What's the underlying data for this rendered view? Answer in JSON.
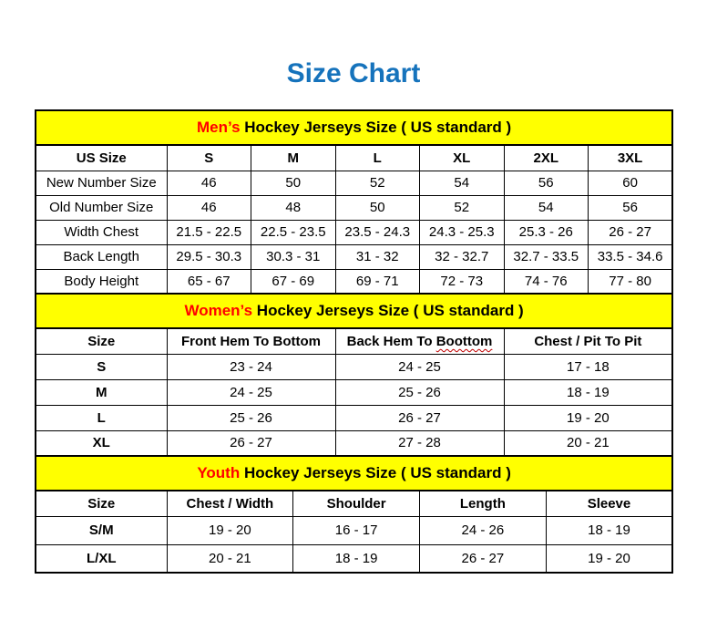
{
  "page": {
    "title": "Size Chart"
  },
  "colors": {
    "title_blue": "#1673BC",
    "band_yellow": "#FFFF00",
    "accent_red": "#FF0000",
    "border_black": "#000000"
  },
  "sections": [
    {
      "id": "mens",
      "heading": {
        "highlight": "Men’s",
        "rest": " Hockey Jerseys Size ( US standard )"
      },
      "columns": [
        "US Size",
        "S",
        "M",
        "L",
        "XL",
        "2XL",
        "3XL"
      ],
      "rows": [
        {
          "label": "New Number Size",
          "values": [
            "46",
            "50",
            "52",
            "54",
            "56",
            "60"
          ]
        },
        {
          "label": "Old Number Size",
          "values": [
            "46",
            "48",
            "50",
            "52",
            "54",
            "56"
          ]
        },
        {
          "label": "Width Chest",
          "values": [
            "21.5 - 22.5",
            "22.5 - 23.5",
            "23.5 - 24.3",
            "24.3 - 25.3",
            "25.3 - 26",
            "26 - 27"
          ]
        },
        {
          "label": "Back Length",
          "values": [
            "29.5 - 30.3",
            "30.3 - 31",
            "31 - 32",
            "32 - 32.7",
            "32.7 - 33.5",
            "33.5 - 34.6"
          ]
        },
        {
          "label": "Body Height",
          "values": [
            "65 - 67",
            "67 - 69",
            "69 - 71",
            "72 - 73",
            "74 - 76",
            "77 - 80"
          ]
        }
      ]
    },
    {
      "id": "womens",
      "heading": {
        "highlight": "Women’s",
        "rest": " Hockey Jerseys Size ( US standard )"
      },
      "columns": [
        "Size",
        "Front Hem To Bottom",
        "Back Hem To Boottom",
        "Chest / Pit To Pit"
      ],
      "misspelled_word": "Boottom",
      "rows": [
        {
          "label": "S",
          "values": [
            "23 - 24",
            "24 - 25",
            "17 - 18"
          ]
        },
        {
          "label": "M",
          "values": [
            "24 - 25",
            "25 - 26",
            "18 - 19"
          ]
        },
        {
          "label": "L",
          "values": [
            "25 - 26",
            "26 - 27",
            "19 - 20"
          ]
        },
        {
          "label": "XL",
          "values": [
            "26 - 27",
            "27 - 28",
            "20 - 21"
          ]
        }
      ]
    },
    {
      "id": "youth",
      "heading": {
        "highlight": "Youth",
        "rest": " Hockey Jerseys Size ( US standard )"
      },
      "columns": [
        "Size",
        "Chest / Width",
        "Shoulder",
        "Length",
        "Sleeve"
      ],
      "rows": [
        {
          "label": "S/M",
          "values": [
            "19 - 20",
            "16 - 17",
            "24 - 26",
            "18 - 19"
          ]
        },
        {
          "label": "L/XL",
          "values": [
            "20 - 21",
            "18 - 19",
            "26 - 27",
            "19 - 20"
          ]
        }
      ]
    }
  ]
}
